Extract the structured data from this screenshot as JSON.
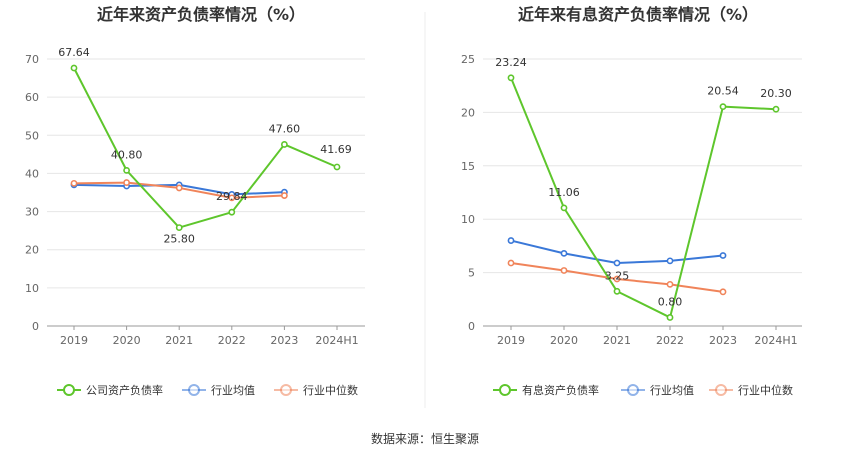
{
  "source_text": "数据来源：恒生聚源",
  "chart_data": [
    {
      "type": "line",
      "title": "近年来资产负债率情况（%）",
      "categories": [
        "2019",
        "2020",
        "2021",
        "2022",
        "2023",
        "2024H1"
      ],
      "ylim": [
        0,
        70
      ],
      "yticks": [
        0,
        10,
        20,
        30,
        40,
        50,
        60,
        70
      ],
      "grid": true,
      "legend_position": "bottom",
      "series": [
        {
          "name": "公司资产负债率",
          "color": "#5ec62c",
          "values": [
            67.64,
            40.8,
            25.8,
            29.84,
            47.6,
            41.69
          ],
          "labels": [
            "67.64",
            "40.80",
            "25.80",
            "29.84",
            "47.60",
            "41.69"
          ]
        },
        {
          "name": "行业均值",
          "color": "#3a78d8",
          "values": [
            37.0,
            36.7,
            37.0,
            34.5,
            35.1,
            null
          ]
        },
        {
          "name": "行业中位数",
          "color": "#f0845a",
          "values": [
            37.4,
            37.6,
            36.2,
            33.6,
            34.2,
            null
          ]
        }
      ]
    },
    {
      "type": "line",
      "title": "近年来有息资产负债率情况（%）",
      "categories": [
        "2019",
        "2020",
        "2021",
        "2022",
        "2023",
        "2024H1"
      ],
      "ylim": [
        0,
        25
      ],
      "yticks": [
        0,
        5,
        10,
        15,
        20,
        25
      ],
      "grid": true,
      "legend_position": "bottom",
      "series": [
        {
          "name": "有息资产负债率",
          "color": "#5ec62c",
          "values": [
            23.24,
            11.06,
            3.25,
            0.8,
            20.54,
            20.3
          ],
          "labels": [
            "23.24",
            "11.06",
            "3.25",
            "0.80",
            "20.54",
            "20.30"
          ]
        },
        {
          "name": "行业均值",
          "color": "#3a78d8",
          "values": [
            8.0,
            6.8,
            5.9,
            6.1,
            6.6,
            null
          ]
        },
        {
          "name": "行业中位数",
          "color": "#f0845a",
          "values": [
            5.9,
            5.2,
            4.4,
            3.9,
            3.2,
            null
          ]
        }
      ]
    }
  ]
}
